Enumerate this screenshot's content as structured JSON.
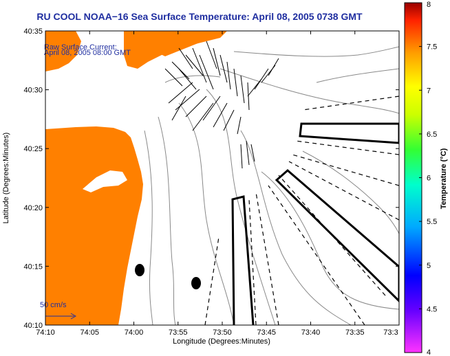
{
  "title": "RU COOL  NOAA−16  Sea Surface Temperature:  April 08, 2005 0738 GMT",
  "current_label_line1": "Raw Surface Current:",
  "current_label_line2": "April 08, 2005 08:00 GMT",
  "scale_label": "50 cm/s",
  "xlabel": "Longitude (Degrees:Minutes)",
  "ylabel": "Latitude (Degrees:Minutes)",
  "x_ticks": [
    "74:10",
    "74:05",
    "74:00",
    "73:55",
    "73:50",
    "73:45",
    "73:40",
    "73:35",
    "73:3"
  ],
  "y_ticks": [
    "40:35",
    "40:30",
    "40:25",
    "40:20",
    "40:15",
    "40:10"
  ],
  "colorbar": {
    "label": "Temperature (°C)",
    "ticks": [
      "8",
      "7.5",
      "7",
      "6.5",
      "6",
      "5.5",
      "5",
      "4.5",
      "4"
    ],
    "range": [
      4,
      8
    ]
  },
  "colors": {
    "land": "#ff8000",
    "title": "#1f2ea0"
  }
}
